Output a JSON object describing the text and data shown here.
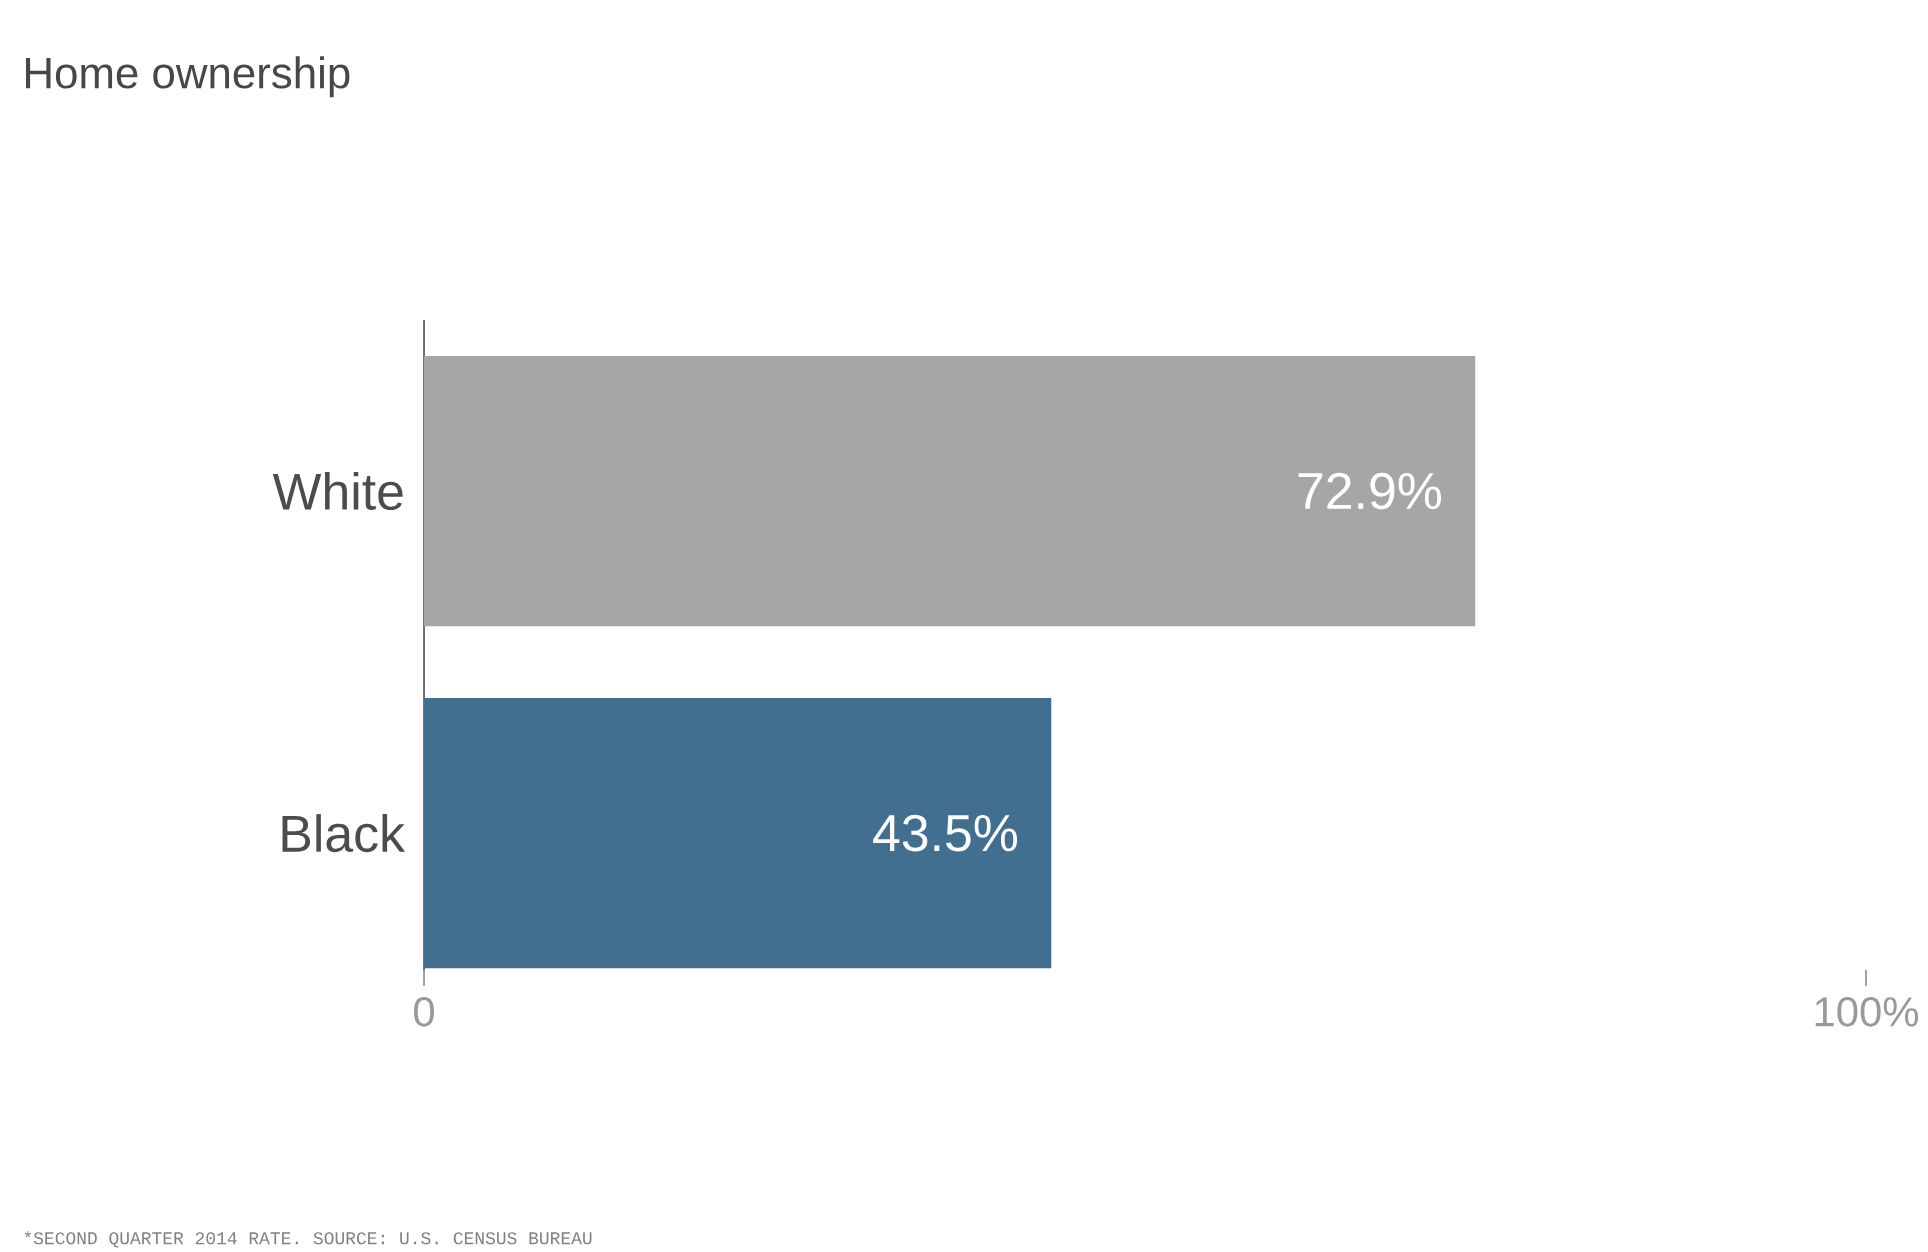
{
  "chart_data": {
    "type": "bar",
    "orientation": "horizontal",
    "title": "Home ownership",
    "categories": [
      "White",
      "Black"
    ],
    "values": [
      72.9,
      43.5
    ],
    "colors": [
      "#a6a6a6",
      "#426e8f"
    ],
    "value_labels": [
      "72.9%",
      "43.5%"
    ],
    "xlim": [
      0,
      100
    ],
    "xticks": [
      0,
      {
        "value": 100,
        "label": "100%"
      }
    ],
    "annotations": [
      "*SECOND QUARTER 2014 RATE. SOURCE: U.S. CENSUS BUREAU"
    ]
  }
}
